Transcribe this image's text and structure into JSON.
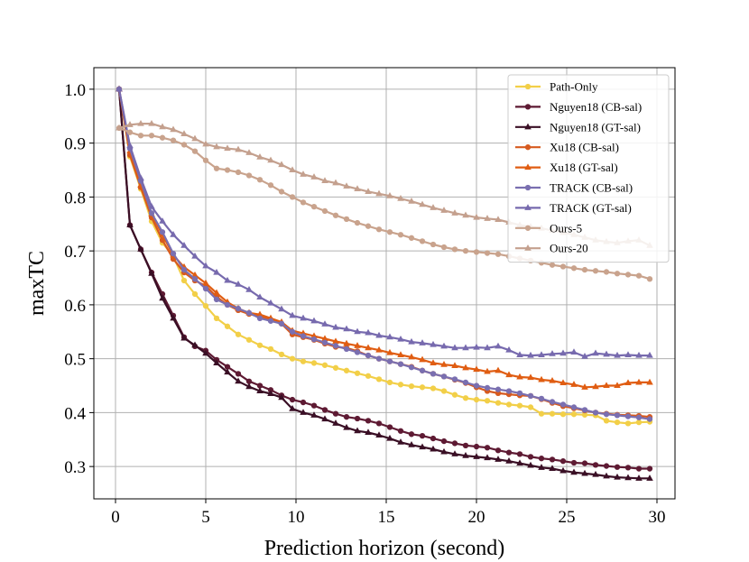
{
  "chart_data": {
    "type": "line",
    "title": "",
    "xlabel": "Prediction horizon (second)",
    "ylabel": "maxTC",
    "xlim": [
      -1.2,
      31.0
    ],
    "ylim": [
      0.24,
      1.04
    ],
    "xticks": [
      0,
      5,
      10,
      15,
      20,
      25,
      30
    ],
    "yticks": [
      0.3,
      0.4,
      0.5,
      0.6,
      0.7,
      0.8,
      0.9,
      1.0
    ],
    "xtick_labels": [
      "0",
      "5",
      "10",
      "15",
      "20",
      "25",
      "30"
    ],
    "ytick_labels": [
      "0.3",
      "0.4",
      "0.5",
      "0.6",
      "0.7",
      "0.8",
      "0.9",
      "1.0"
    ],
    "grid": true,
    "legend_position": "top-right",
    "series": [
      {
        "name": "Path-Only",
        "color": "#f2cf48",
        "marker": "circle",
        "x": [
          0.2,
          0.8,
          1.4,
          2.0,
          2.6,
          3.2,
          3.8,
          4.4,
          5.0,
          5.6,
          6.2,
          6.8,
          7.4,
          8.0,
          8.6,
          9.2,
          9.8,
          10.4,
          11.0,
          11.6,
          12.2,
          12.8,
          13.4,
          14.0,
          14.6,
          15.2,
          15.8,
          16.4,
          17.0,
          17.6,
          18.2,
          18.8,
          19.4,
          20.0,
          20.6,
          21.2,
          21.8,
          22.4,
          23.0,
          23.6,
          24.2,
          24.8,
          25.4,
          26.0,
          26.6,
          27.2,
          27.8,
          28.4,
          29.0,
          29.6
        ],
        "y": [
          1.0,
          0.875,
          0.815,
          0.755,
          0.715,
          0.69,
          0.645,
          0.62,
          0.598,
          0.575,
          0.56,
          0.545,
          0.535,
          0.525,
          0.518,
          0.508,
          0.5,
          0.495,
          0.492,
          0.488,
          0.483,
          0.478,
          0.473,
          0.468,
          0.462,
          0.456,
          0.452,
          0.449,
          0.447,
          0.445,
          0.44,
          0.433,
          0.427,
          0.424,
          0.422,
          0.418,
          0.415,
          0.413,
          0.41,
          0.398,
          0.398,
          0.397,
          0.397,
          0.396,
          0.395,
          0.385,
          0.382,
          0.38,
          0.382,
          0.383
        ]
      },
      {
        "name": "Nguyen18 (CB-sal)",
        "color": "#5e1a33",
        "marker": "circle",
        "x": [
          0.2,
          0.8,
          1.4,
          2.0,
          2.6,
          3.2,
          3.8,
          4.4,
          5.0,
          5.6,
          6.2,
          6.8,
          7.4,
          8.0,
          8.6,
          9.2,
          9.8,
          10.4,
          11.0,
          11.6,
          12.2,
          12.8,
          13.4,
          14.0,
          14.6,
          15.2,
          15.8,
          16.4,
          17.0,
          17.6,
          18.2,
          18.8,
          19.4,
          20.0,
          20.6,
          21.2,
          21.8,
          22.4,
          23.0,
          23.6,
          24.2,
          24.8,
          25.4,
          26.0,
          26.6,
          27.2,
          27.8,
          28.4,
          29.0,
          29.6
        ],
        "y": [
          1.0,
          0.748,
          0.703,
          0.66,
          0.62,
          0.58,
          0.54,
          0.523,
          0.515,
          0.498,
          0.485,
          0.472,
          0.458,
          0.45,
          0.442,
          0.432,
          0.424,
          0.419,
          0.413,
          0.405,
          0.398,
          0.392,
          0.389,
          0.385,
          0.38,
          0.373,
          0.366,
          0.36,
          0.357,
          0.352,
          0.347,
          0.343,
          0.339,
          0.337,
          0.335,
          0.33,
          0.326,
          0.323,
          0.318,
          0.315,
          0.313,
          0.31,
          0.307,
          0.306,
          0.303,
          0.301,
          0.299,
          0.298,
          0.296,
          0.296
        ]
      },
      {
        "name": "Nguyen18 (GT-sal)",
        "color": "#3a0f25",
        "marker": "triangle",
        "x": [
          0.2,
          0.8,
          1.4,
          2.0,
          2.6,
          3.2,
          3.8,
          4.4,
          5.0,
          5.6,
          6.2,
          6.8,
          7.4,
          8.0,
          8.6,
          9.2,
          9.8,
          10.4,
          11.0,
          11.6,
          12.2,
          12.8,
          13.4,
          14.0,
          14.6,
          15.2,
          15.8,
          16.4,
          17.0,
          17.6,
          18.2,
          18.8,
          19.4,
          20.0,
          20.6,
          21.2,
          21.8,
          22.4,
          23.0,
          23.6,
          24.2,
          24.8,
          25.4,
          26.0,
          26.6,
          27.2,
          27.8,
          28.4,
          29.0,
          29.6
        ],
        "y": [
          1.0,
          0.748,
          0.703,
          0.658,
          0.612,
          0.575,
          0.538,
          0.525,
          0.51,
          0.492,
          0.475,
          0.458,
          0.448,
          0.44,
          0.435,
          0.428,
          0.407,
          0.4,
          0.395,
          0.388,
          0.38,
          0.372,
          0.366,
          0.363,
          0.358,
          0.352,
          0.345,
          0.34,
          0.336,
          0.332,
          0.327,
          0.323,
          0.32,
          0.318,
          0.316,
          0.313,
          0.31,
          0.306,
          0.302,
          0.298,
          0.296,
          0.292,
          0.289,
          0.287,
          0.285,
          0.282,
          0.28,
          0.279,
          0.278,
          0.278
        ]
      },
      {
        "name": "Xu18 (CB-sal)",
        "color": "#d65a1f",
        "marker": "circle",
        "x": [
          0.2,
          0.8,
          1.4,
          2.0,
          2.6,
          3.2,
          3.8,
          4.4,
          5.0,
          5.6,
          6.2,
          6.8,
          7.4,
          8.0,
          8.6,
          9.2,
          9.8,
          10.4,
          11.0,
          11.6,
          12.2,
          12.8,
          13.4,
          14.0,
          14.6,
          15.2,
          15.8,
          16.4,
          17.0,
          17.6,
          18.2,
          18.8,
          19.4,
          20.0,
          20.6,
          21.2,
          21.8,
          22.4,
          23.0,
          23.6,
          24.2,
          24.8,
          25.4,
          26.0,
          26.6,
          27.2,
          27.8,
          28.4,
          29.0,
          29.6
        ],
        "y": [
          1.0,
          0.878,
          0.818,
          0.762,
          0.72,
          0.685,
          0.66,
          0.645,
          0.635,
          0.615,
          0.6,
          0.59,
          0.583,
          0.578,
          0.572,
          0.565,
          0.545,
          0.54,
          0.535,
          0.528,
          0.522,
          0.52,
          0.514,
          0.506,
          0.5,
          0.495,
          0.49,
          0.485,
          0.478,
          0.472,
          0.467,
          0.461,
          0.455,
          0.447,
          0.44,
          0.436,
          0.434,
          0.432,
          0.431,
          0.425,
          0.418,
          0.412,
          0.408,
          0.404,
          0.4,
          0.398,
          0.396,
          0.395,
          0.394,
          0.392
        ]
      },
      {
        "name": "Xu18 (GT-sal)",
        "color": "#e05d12",
        "marker": "triangle",
        "x": [
          0.2,
          0.8,
          1.4,
          2.0,
          2.6,
          3.2,
          3.8,
          4.4,
          5.0,
          5.6,
          6.2,
          6.8,
          7.4,
          8.0,
          8.6,
          9.2,
          9.8,
          10.4,
          11.0,
          11.6,
          12.2,
          12.8,
          13.4,
          14.0,
          14.6,
          15.2,
          15.8,
          16.4,
          17.0,
          17.6,
          18.2,
          18.8,
          19.4,
          20.0,
          20.6,
          21.2,
          21.8,
          22.4,
          23.0,
          23.6,
          24.2,
          24.8,
          25.4,
          26.0,
          26.6,
          27.2,
          27.8,
          28.4,
          29.0,
          29.6
        ],
        "y": [
          1.0,
          0.885,
          0.822,
          0.768,
          0.73,
          0.692,
          0.67,
          0.655,
          0.64,
          0.622,
          0.605,
          0.593,
          0.585,
          0.582,
          0.575,
          0.568,
          0.552,
          0.547,
          0.542,
          0.537,
          0.532,
          0.528,
          0.524,
          0.52,
          0.516,
          0.511,
          0.507,
          0.503,
          0.498,
          0.492,
          0.489,
          0.487,
          0.483,
          0.48,
          0.476,
          0.478,
          0.47,
          0.466,
          0.465,
          0.461,
          0.459,
          0.455,
          0.452,
          0.447,
          0.448,
          0.45,
          0.45,
          0.455,
          0.456,
          0.456
        ]
      },
      {
        "name": "TRACK (CB-sal)",
        "color": "#7a6fb0",
        "marker": "circle",
        "x": [
          0.2,
          0.8,
          1.4,
          2.0,
          2.6,
          3.2,
          3.8,
          4.4,
          5.0,
          5.6,
          6.2,
          6.8,
          7.4,
          8.0,
          8.6,
          9.2,
          9.8,
          10.4,
          11.0,
          11.6,
          12.2,
          12.8,
          13.4,
          14.0,
          14.6,
          15.2,
          15.8,
          16.4,
          17.0,
          17.6,
          18.2,
          18.8,
          19.4,
          20.0,
          20.6,
          21.2,
          21.8,
          22.4,
          23.0,
          23.6,
          24.2,
          24.8,
          25.4,
          26.0,
          26.6,
          27.2,
          27.8,
          28.4,
          29.0,
          29.6
        ],
        "y": [
          1.0,
          0.89,
          0.83,
          0.77,
          0.735,
          0.695,
          0.665,
          0.648,
          0.63,
          0.61,
          0.6,
          0.593,
          0.585,
          0.575,
          0.57,
          0.565,
          0.55,
          0.542,
          0.536,
          0.53,
          0.524,
          0.518,
          0.512,
          0.506,
          0.5,
          0.495,
          0.49,
          0.484,
          0.478,
          0.472,
          0.467,
          0.462,
          0.456,
          0.45,
          0.446,
          0.443,
          0.44,
          0.436,
          0.431,
          0.426,
          0.42,
          0.415,
          0.41,
          0.405,
          0.4,
          0.397,
          0.395,
          0.393,
          0.391,
          0.388
        ]
      },
      {
        "name": "TRACK (GT-sal)",
        "color": "#776aae",
        "marker": "triangle",
        "x": [
          0.2,
          0.8,
          1.4,
          2.0,
          2.6,
          3.2,
          3.8,
          4.4,
          5.0,
          5.6,
          6.2,
          6.8,
          7.4,
          8.0,
          8.6,
          9.2,
          9.8,
          10.4,
          11.0,
          11.6,
          12.2,
          12.8,
          13.4,
          14.0,
          14.6,
          15.2,
          15.8,
          16.4,
          17.0,
          17.6,
          18.2,
          18.8,
          19.4,
          20.0,
          20.6,
          21.2,
          21.8,
          22.4,
          23.0,
          23.6,
          24.2,
          24.8,
          25.4,
          26.0,
          26.6,
          27.2,
          27.8,
          28.4,
          29.0,
          29.6
        ],
        "y": [
          1.0,
          0.895,
          0.835,
          0.782,
          0.755,
          0.73,
          0.71,
          0.69,
          0.672,
          0.66,
          0.645,
          0.638,
          0.628,
          0.614,
          0.603,
          0.592,
          0.58,
          0.575,
          0.57,
          0.564,
          0.558,
          0.555,
          0.55,
          0.548,
          0.543,
          0.54,
          0.536,
          0.531,
          0.529,
          0.526,
          0.523,
          0.52,
          0.52,
          0.521,
          0.52,
          0.523,
          0.516,
          0.507,
          0.506,
          0.507,
          0.509,
          0.51,
          0.512,
          0.504,
          0.51,
          0.508,
          0.506,
          0.507,
          0.506,
          0.506
        ]
      },
      {
        "name": "Ours-5",
        "color": "#c9a38d",
        "marker": "circle",
        "x": [
          0.2,
          0.8,
          1.4,
          2.0,
          2.6,
          3.2,
          3.8,
          4.4,
          5.0,
          5.6,
          6.2,
          6.8,
          7.4,
          8.0,
          8.6,
          9.2,
          9.8,
          10.4,
          11.0,
          11.6,
          12.2,
          12.8,
          13.4,
          14.0,
          14.6,
          15.2,
          15.8,
          16.4,
          17.0,
          17.6,
          18.2,
          18.8,
          19.4,
          20.0,
          20.6,
          21.2,
          21.8,
          22.4,
          23.0,
          23.6,
          24.2,
          24.8,
          25.4,
          26.0,
          26.6,
          27.2,
          27.8,
          28.4,
          29.0,
          29.6
        ],
        "y": [
          0.928,
          0.92,
          0.914,
          0.914,
          0.91,
          0.905,
          0.897,
          0.885,
          0.868,
          0.853,
          0.85,
          0.846,
          0.84,
          0.832,
          0.822,
          0.81,
          0.8,
          0.79,
          0.782,
          0.774,
          0.766,
          0.759,
          0.752,
          0.746,
          0.74,
          0.735,
          0.73,
          0.724,
          0.718,
          0.712,
          0.707,
          0.703,
          0.7,
          0.698,
          0.696,
          0.694,
          0.69,
          0.686,
          0.682,
          0.678,
          0.674,
          0.671,
          0.668,
          0.665,
          0.663,
          0.661,
          0.658,
          0.656,
          0.654,
          0.648
        ]
      },
      {
        "name": "Ours-20",
        "color": "#c4a08e",
        "marker": "triangle",
        "x": [
          0.2,
          0.8,
          1.4,
          2.0,
          2.6,
          3.2,
          3.8,
          4.4,
          5.0,
          5.6,
          6.2,
          6.8,
          7.4,
          8.0,
          8.6,
          9.2,
          9.8,
          10.4,
          11.0,
          11.6,
          12.2,
          12.8,
          13.4,
          14.0,
          14.6,
          15.2,
          15.8,
          16.4,
          17.0,
          17.6,
          18.2,
          18.8,
          19.4,
          20.0,
          20.6,
          21.2,
          21.8,
          22.4,
          23.0,
          23.6,
          24.2,
          24.8,
          25.4,
          26.0,
          26.6,
          27.2,
          27.8,
          28.4,
          29.0,
          29.6
        ],
        "y": [
          0.928,
          0.934,
          0.936,
          0.936,
          0.93,
          0.925,
          0.917,
          0.908,
          0.898,
          0.893,
          0.89,
          0.888,
          0.882,
          0.874,
          0.868,
          0.86,
          0.85,
          0.842,
          0.837,
          0.83,
          0.826,
          0.82,
          0.815,
          0.81,
          0.806,
          0.802,
          0.797,
          0.792,
          0.786,
          0.78,
          0.775,
          0.77,
          0.766,
          0.762,
          0.76,
          0.758,
          0.753,
          0.748,
          0.745,
          0.742,
          0.738,
          0.734,
          0.73,
          0.725,
          0.72,
          0.717,
          0.715,
          0.718,
          0.72,
          0.71
        ]
      }
    ]
  }
}
